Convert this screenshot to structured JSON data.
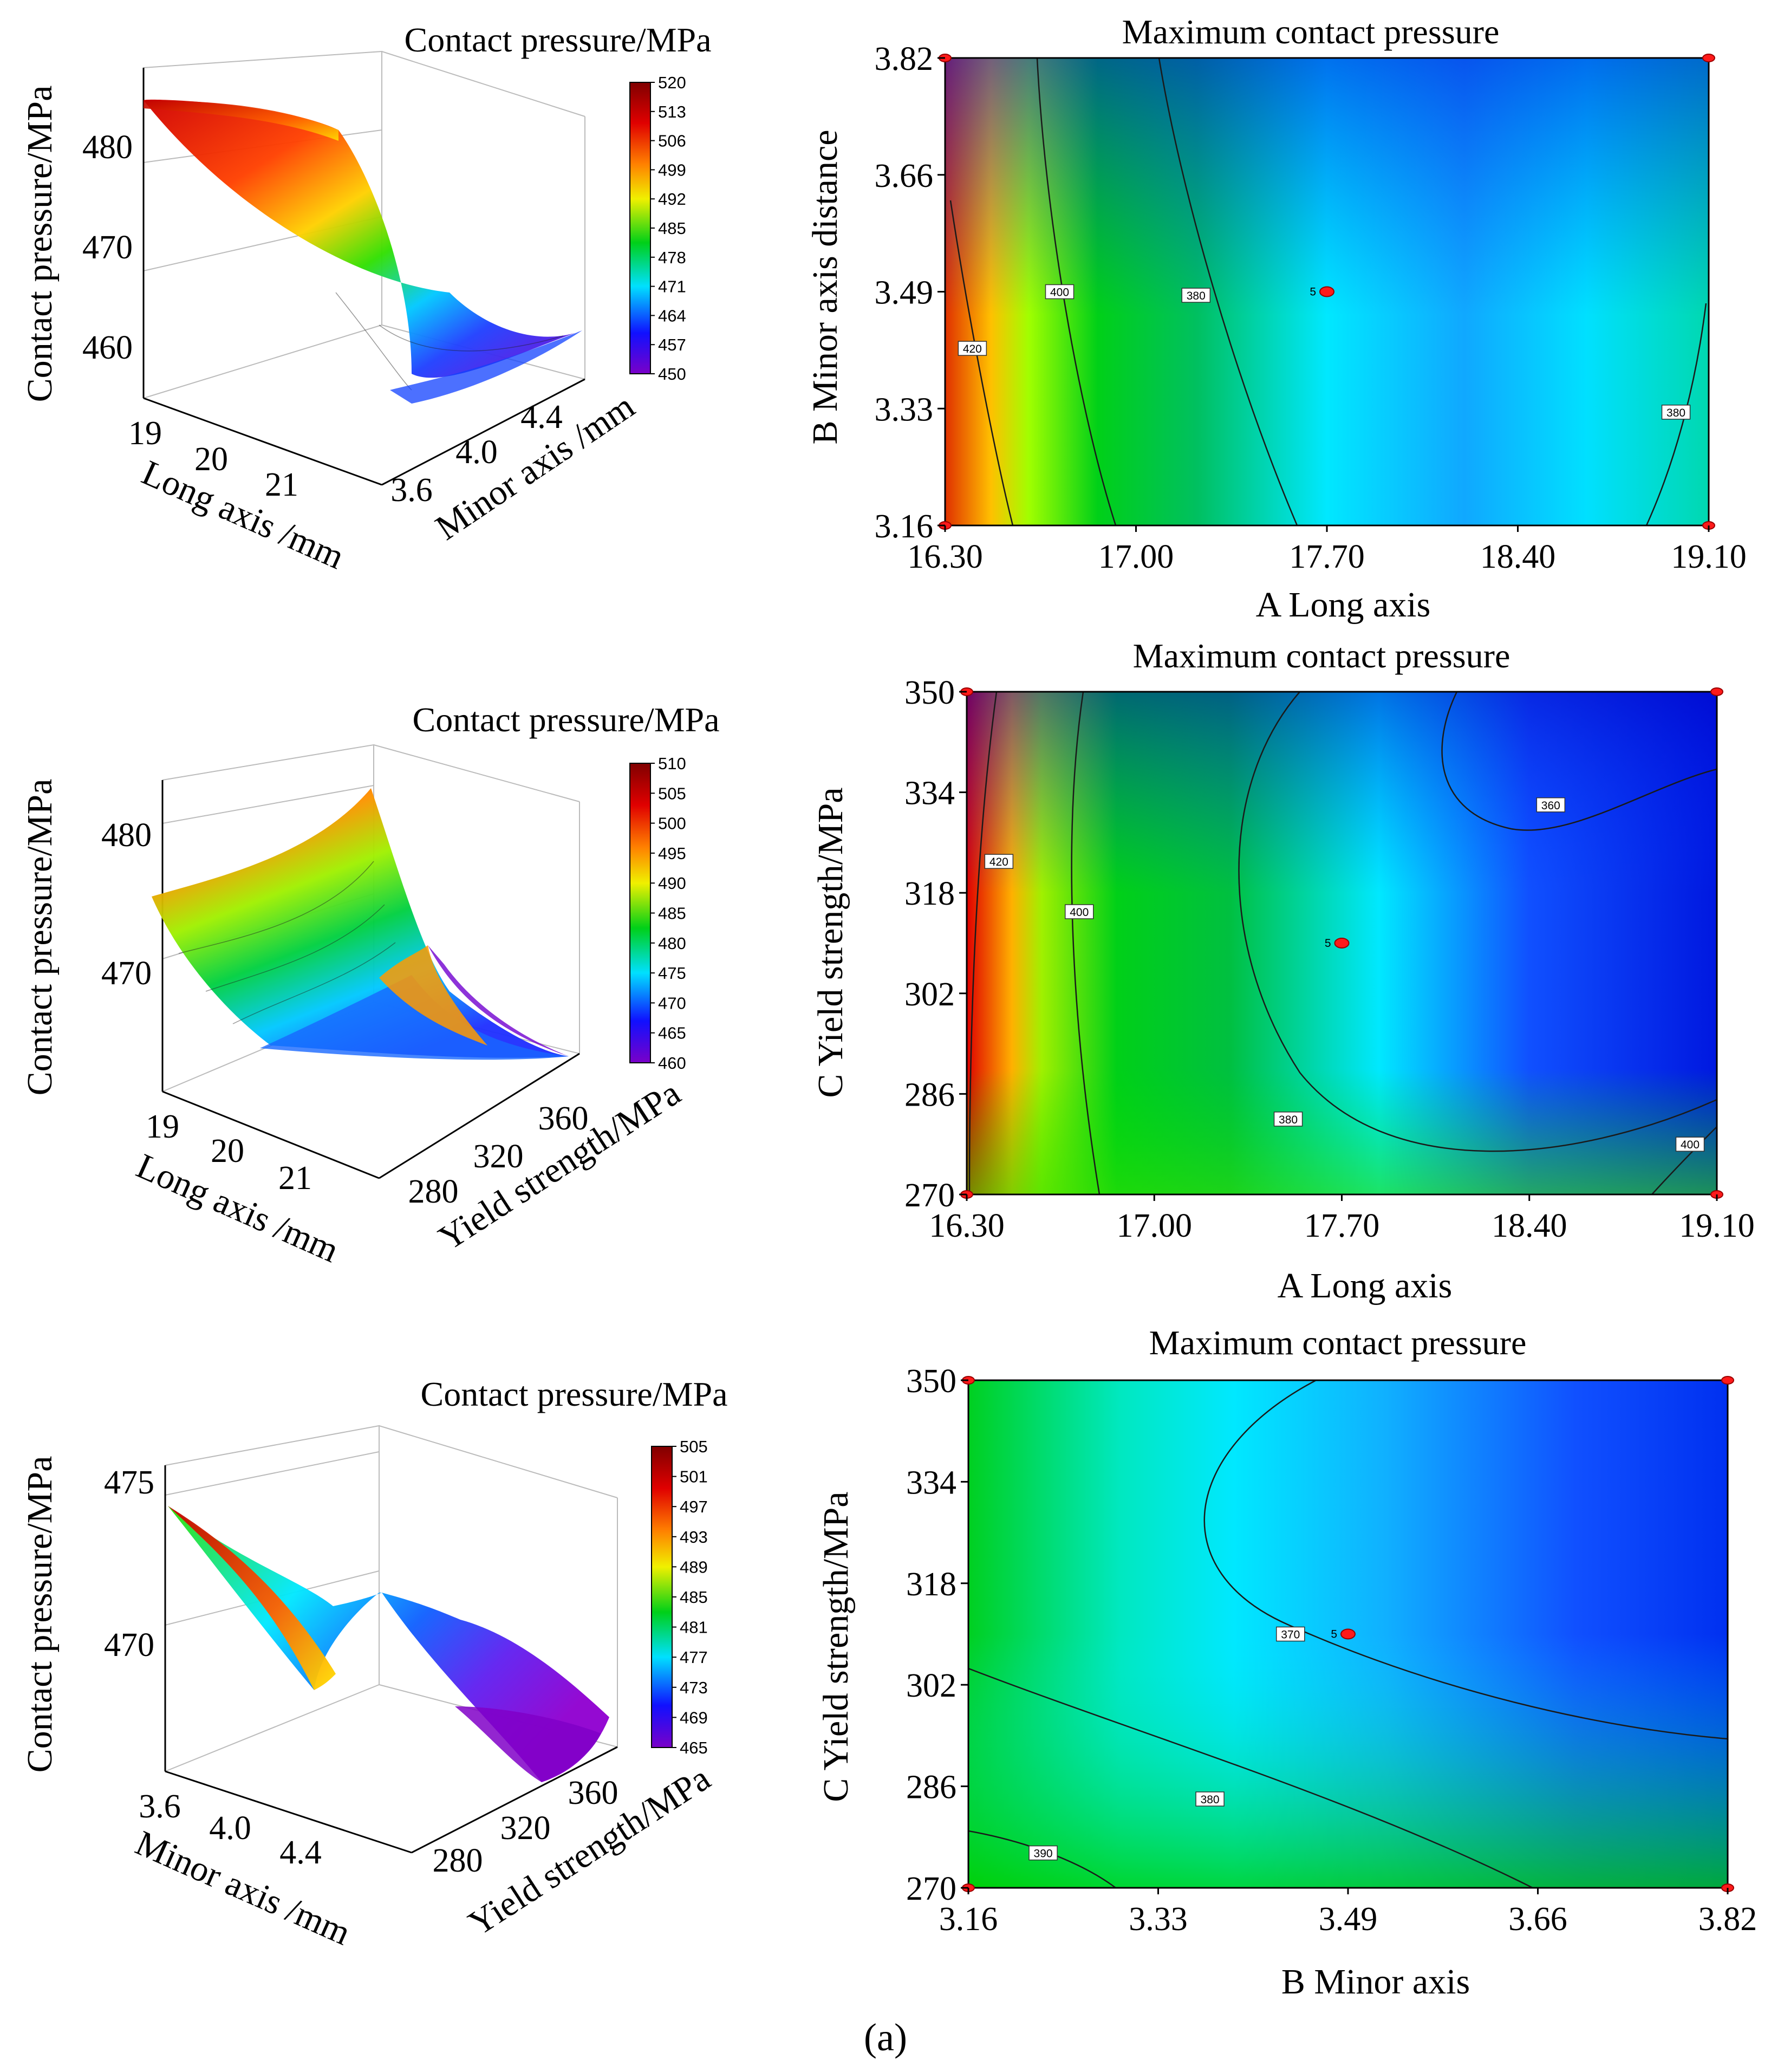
{
  "caption": "(a)",
  "colors": {
    "jet": [
      "#7a00c8",
      "#1010ff",
      "#00e0ff",
      "#00d018",
      "#f0f000",
      "#ff8000",
      "#e00000",
      "#800000"
    ],
    "contour_line": "#1a1a1a",
    "marker": "#ff1a1a"
  },
  "chart_data": [
    {
      "type": "surface3d",
      "id": "s1",
      "title": "Contact pressure/MPa",
      "zlabel": "Contact pressure/MPa",
      "xlabel": "Long axis /mm",
      "ylabel": "Minor axis /mm",
      "zticks": [
        "460",
        "470",
        "480"
      ],
      "xticks": [
        "19",
        "20",
        "21"
      ],
      "yticks": [
        "3.6",
        "4.0",
        "4.4"
      ],
      "colorbar": [
        "520",
        "513",
        "506",
        "499",
        "492",
        "485",
        "478",
        "471",
        "464",
        "457",
        "450"
      ]
    },
    {
      "type": "contour",
      "id": "c1",
      "title": "Maximum contact pressure",
      "xlabel": "A Long axis",
      "ylabel": "B Minor axis distance",
      "xticks": [
        "16.30",
        "17.00",
        "17.70",
        "18.40",
        "19.10"
      ],
      "yticks": [
        "3.82",
        "3.66",
        "3.49",
        "3.33",
        "3.16"
      ],
      "xlim": [
        16.3,
        19.1
      ],
      "ylim": [
        3.16,
        3.82
      ],
      "center": {
        "x": 17.7,
        "y": 3.49,
        "label": "5"
      },
      "contour_labels": [
        {
          "text": "420",
          "x": 16.4,
          "y": 3.41
        },
        {
          "text": "400",
          "x": 16.72,
          "y": 3.49
        },
        {
          "text": "380",
          "x": 17.22,
          "y": 3.485
        },
        {
          "text": "380",
          "x": 18.98,
          "y": 3.32
        }
      ]
    },
    {
      "type": "surface3d",
      "id": "s2",
      "title": "Contact pressure/MPa",
      "zlabel": "Contact pressure/MPa",
      "xlabel": "Long axis /mm",
      "ylabel": "Yield strength/MPa",
      "zticks": [
        "470",
        "480"
      ],
      "xticks": [
        "19",
        "20",
        "21"
      ],
      "yticks": [
        "280",
        "320",
        "360"
      ],
      "colorbar": [
        "510",
        "505",
        "500",
        "495",
        "490",
        "485",
        "480",
        "475",
        "470",
        "465",
        "460"
      ]
    },
    {
      "type": "contour",
      "id": "c2",
      "title": "Maximum contact pressure",
      "xlabel": "A   Long axis",
      "ylabel": "C  Yield strength/MPa",
      "xticks": [
        "16.30",
        "17.00",
        "17.70",
        "18.40",
        "19.10"
      ],
      "yticks": [
        "350",
        "334",
        "318",
        "302",
        "286",
        "270"
      ],
      "xlim": [
        16.3,
        19.1
      ],
      "ylim": [
        270,
        350
      ],
      "center": {
        "x": 17.7,
        "y": 310,
        "label": "5"
      },
      "contour_labels": [
        {
          "text": "420",
          "x": 16.42,
          "y": 323
        },
        {
          "text": "400",
          "x": 16.72,
          "y": 315
        },
        {
          "text": "360",
          "x": 18.48,
          "y": 332
        },
        {
          "text": "380",
          "x": 17.5,
          "y": 282
        },
        {
          "text": "400",
          "x": 19.0,
          "y": 278
        }
      ]
    },
    {
      "type": "surface3d",
      "id": "s3",
      "title": "Contact pressure/MPa",
      "zlabel": "Contact pressure/MPa",
      "xlabel": "Minor axis /mm",
      "ylabel": "Yield strength/MPa",
      "zticks": [
        "470",
        "475"
      ],
      "xticks": [
        "3.6",
        "4.0",
        "4.4"
      ],
      "yticks": [
        "280",
        "320",
        "360"
      ],
      "colorbar": [
        "505",
        "501",
        "497",
        "493",
        "489",
        "485",
        "481",
        "477",
        "473",
        "469",
        "465"
      ]
    },
    {
      "type": "contour",
      "id": "c3",
      "title": "Maximum contact pressure",
      "xlabel": "B Minor axis",
      "ylabel": "C  Yield strength/MPa",
      "xticks": [
        "3.16",
        "3.33",
        "3.49",
        "3.66",
        "3.82"
      ],
      "yticks": [
        "350",
        "334",
        "318",
        "302",
        "286",
        "270"
      ],
      "xlim": [
        3.16,
        3.82
      ],
      "ylim": [
        270,
        350
      ],
      "center": {
        "x": 3.49,
        "y": 310,
        "label": "5"
      },
      "contour_labels": [
        {
          "text": "370",
          "x": 3.44,
          "y": 310
        },
        {
          "text": "380",
          "x": 3.37,
          "y": 284
        },
        {
          "text": "390",
          "x": 3.225,
          "y": 275.5
        }
      ]
    }
  ]
}
